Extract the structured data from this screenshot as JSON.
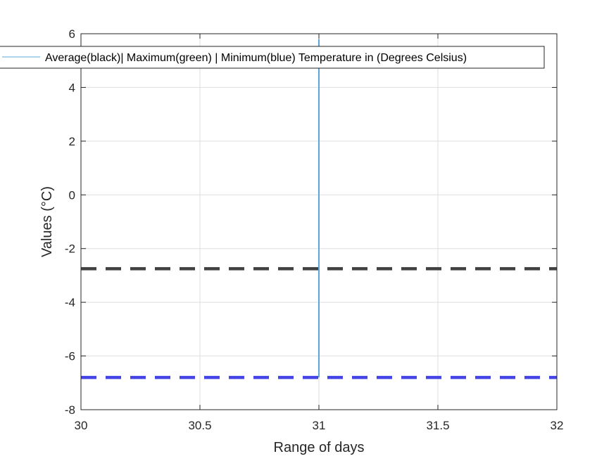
{
  "chart_data": {
    "type": "line",
    "xlabel": "Range of days",
    "ylabel": "Values (°C)",
    "xlim": [
      30,
      32
    ],
    "ylim": [
      -8,
      6
    ],
    "xticks": [
      30,
      30.5,
      31,
      31.5,
      32
    ],
    "yticks": [
      -8,
      -6,
      -4,
      -2,
      0,
      2,
      4,
      6
    ],
    "xtick_labels": [
      "30",
      "30.5",
      "31",
      "31.5",
      "32"
    ],
    "ytick_labels": [
      "-8",
      "-6",
      "-4",
      "-2",
      "0",
      "2",
      "4",
      "6"
    ],
    "grid": true,
    "legend": {
      "position": "top",
      "entries": [
        "Average(black)| Maximum(green) | Minimum(blue) Temperature in (Degrees Celsius)"
      ]
    },
    "series": [
      {
        "name": "Average(black)| Maximum(green) | Minimum(blue) Temperature in (Degrees Celsius)",
        "style": "solid",
        "color": "#5aa5da",
        "x": [
          31,
          31
        ],
        "y": [
          -6.8,
          5.8
        ]
      }
    ],
    "reference_lines": [
      {
        "axis": "y",
        "value": -2.75,
        "style": "dashed",
        "color": "#404040"
      },
      {
        "axis": "y",
        "value": -6.8,
        "style": "dashed",
        "color": "#4545e6"
      }
    ]
  }
}
